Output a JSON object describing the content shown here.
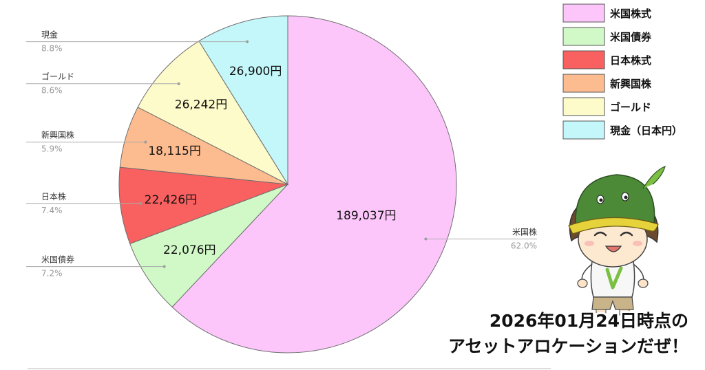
{
  "chart_data": {
    "type": "pie",
    "start": "12 o'clock",
    "direction": "clockwise",
    "slices": [
      {
        "category": "米国株",
        "value": 189037,
        "value_label": "189,037円",
        "percent_label": "62.0%",
        "color": "#fcc6fa"
      },
      {
        "category": "米国債券",
        "value": 22076,
        "value_label": "22,076円",
        "percent_label": "7.2%",
        "color": "#d1f8c7"
      },
      {
        "category": "日本株",
        "value": 22426,
        "value_label": "22,426円",
        "percent_label": "7.4%",
        "color": "#f96060"
      },
      {
        "category": "新興国株",
        "value": 18115,
        "value_label": "18,115円",
        "percent_label": "5.9%",
        "color": "#fdbc8f"
      },
      {
        "category": "ゴールド",
        "value": 26242,
        "value_label": "26,242円",
        "percent_label": "8.6%",
        "color": "#fdfbc9"
      },
      {
        "category": "現金",
        "value": 26900,
        "value_label": "26,900円",
        "percent_label": "8.8%",
        "color": "#c3f7fa"
      }
    ],
    "legend": {
      "placement": "top-right",
      "entries": [
        {
          "label": "米国株式",
          "color": "#fcc6fa"
        },
        {
          "label": "米国債券",
          "color": "#d1f8c7"
        },
        {
          "label": "日本株式",
          "color": "#f96060"
        },
        {
          "label": "新興国株",
          "color": "#fdbc8f"
        },
        {
          "label": "ゴールド",
          "color": "#fdfbc9"
        },
        {
          "label": "現金（日本円）",
          "color": "#c3f7fa"
        }
      ]
    }
  },
  "caption": {
    "line1": "2026年01月24日時点の",
    "line2": "アセットアロケーションだぜ！"
  },
  "mascot": {
    "icon": "kappa-mascot-icon",
    "hat_color": "#4c8a38",
    "shirt_mark_color": "#7bc043"
  }
}
